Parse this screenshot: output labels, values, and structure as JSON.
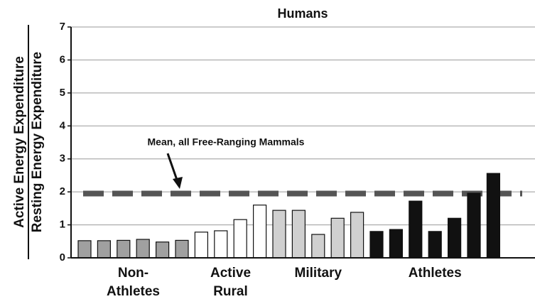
{
  "chart_data": {
    "type": "bar",
    "title": "Humans",
    "y_label_top": "Active Energy Expenditure",
    "y_label_bottom": "Resting Energy Expenditure",
    "ylim": [
      0,
      7
    ],
    "yticks": [
      0,
      1,
      2,
      3,
      4,
      5,
      6,
      7
    ],
    "grid": true,
    "reference": {
      "value": 1.95,
      "label": "Mean, all Free-Ranging Mammals",
      "color": "#555555"
    },
    "groups": [
      {
        "label": [
          "Non-",
          "Athletes"
        ],
        "color": "#a0a0a0",
        "values": [
          0.52,
          0.52,
          0.53,
          0.56,
          0.48,
          0.53
        ]
      },
      {
        "label": [
          "Active",
          "Rural"
        ],
        "color": "#ffffff",
        "values": [
          0.78,
          0.82,
          1.16,
          1.6
        ]
      },
      {
        "label": [
          "Military"
        ],
        "color": "#d0d0d0",
        "values": [
          1.44,
          1.44,
          0.71,
          1.2,
          1.38
        ]
      },
      {
        "label": [
          "Athletes"
        ],
        "color": "#111111",
        "values": [
          0.8,
          0.86,
          1.72,
          0.8,
          1.2,
          1.96,
          2.56
        ]
      }
    ]
  }
}
